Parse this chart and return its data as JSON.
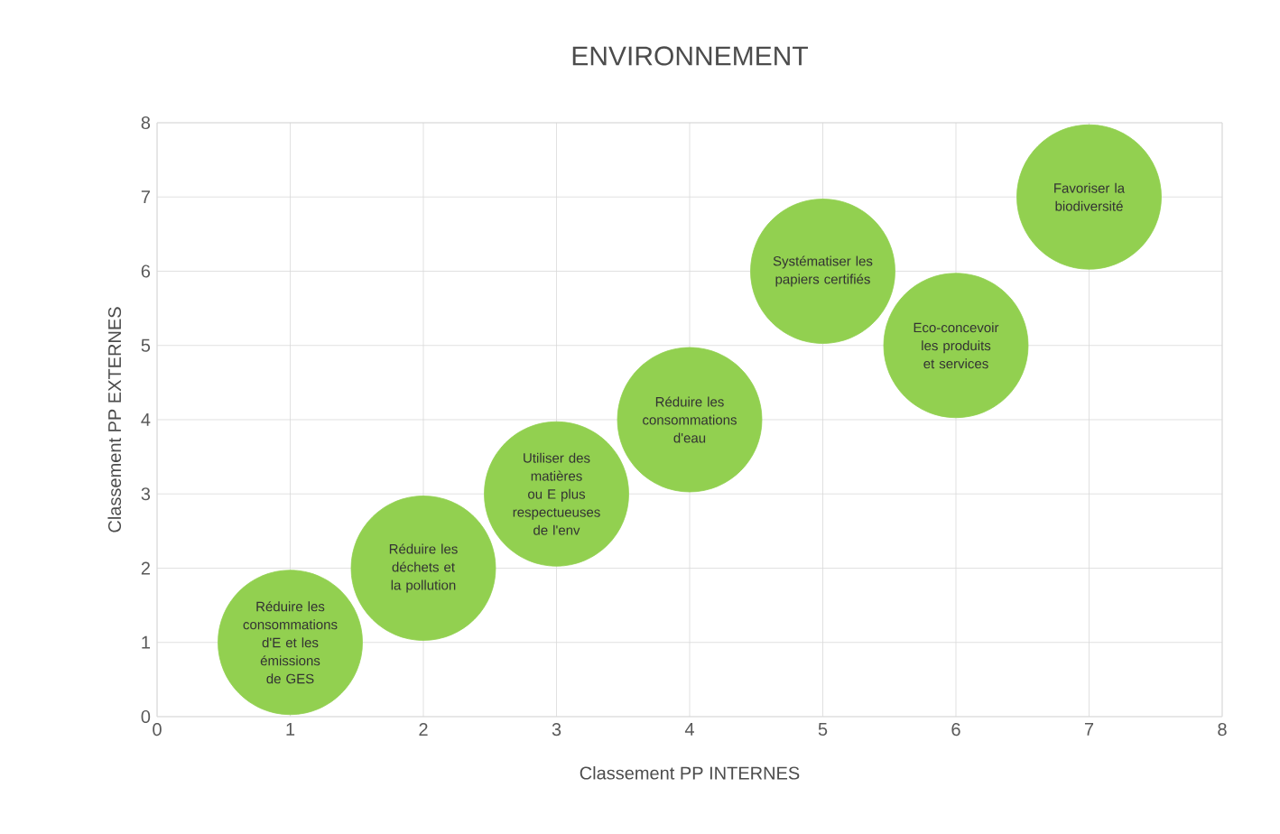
{
  "chart_data": {
    "type": "bubble",
    "title": "ENVIRONNEMENT",
    "xlabel": "Classement PP INTERNES",
    "ylabel": "Classement PP EXTERNES",
    "x": [
      1,
      2,
      3,
      4,
      5,
      6,
      7
    ],
    "values": [
      1,
      2,
      3,
      4,
      6,
      5,
      7
    ],
    "sizes": [
      1,
      1,
      1,
      1,
      1,
      1,
      1
    ],
    "color": "#92d050",
    "xlim": [
      0,
      8
    ],
    "ylim": [
      0,
      8
    ],
    "xticks": [
      0,
      1,
      2,
      3,
      4,
      5,
      6,
      7,
      8
    ],
    "yticks": [
      0,
      1,
      2,
      3,
      4,
      5,
      6,
      7,
      8
    ],
    "grid": true,
    "annotations": [
      {
        "text": "Réduire les consommations d'E et les émissions de GES",
        "x": 1,
        "y": 1
      },
      {
        "text": "Réduire les déchets et la pollution",
        "x": 2,
        "y": 2
      },
      {
        "text": "Utiliser des matières ou E plus respectueuses de l'env",
        "x": 3,
        "y": 3
      },
      {
        "text": "Réduire les consommations d'eau",
        "x": 4,
        "y": 4
      },
      {
        "text": "Systématiser les papiers certifiés",
        "x": 5,
        "y": 6
      },
      {
        "text": "Eco-concevoir les produits et services",
        "x": 6,
        "y": 5
      },
      {
        "text": "Favoriser la biodiversité",
        "x": 7,
        "y": 7
      }
    ]
  }
}
